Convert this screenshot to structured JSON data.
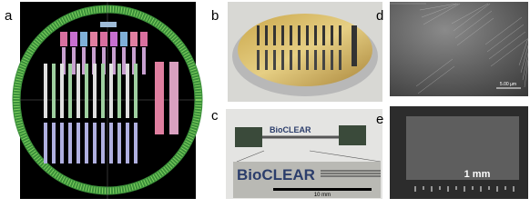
{
  "panels": [
    {
      "label": "a"
    },
    {
      "label": "b"
    },
    {
      "label": "c",
      "texts": [
        "BioCLEAR",
        "BioCLEAR"
      ],
      "scale_bar": "10 mm"
    },
    {
      "label": "d",
      "scale_bar": "5.00 µm"
    },
    {
      "label": "e",
      "scale_bar": "1 mm"
    }
  ]
}
